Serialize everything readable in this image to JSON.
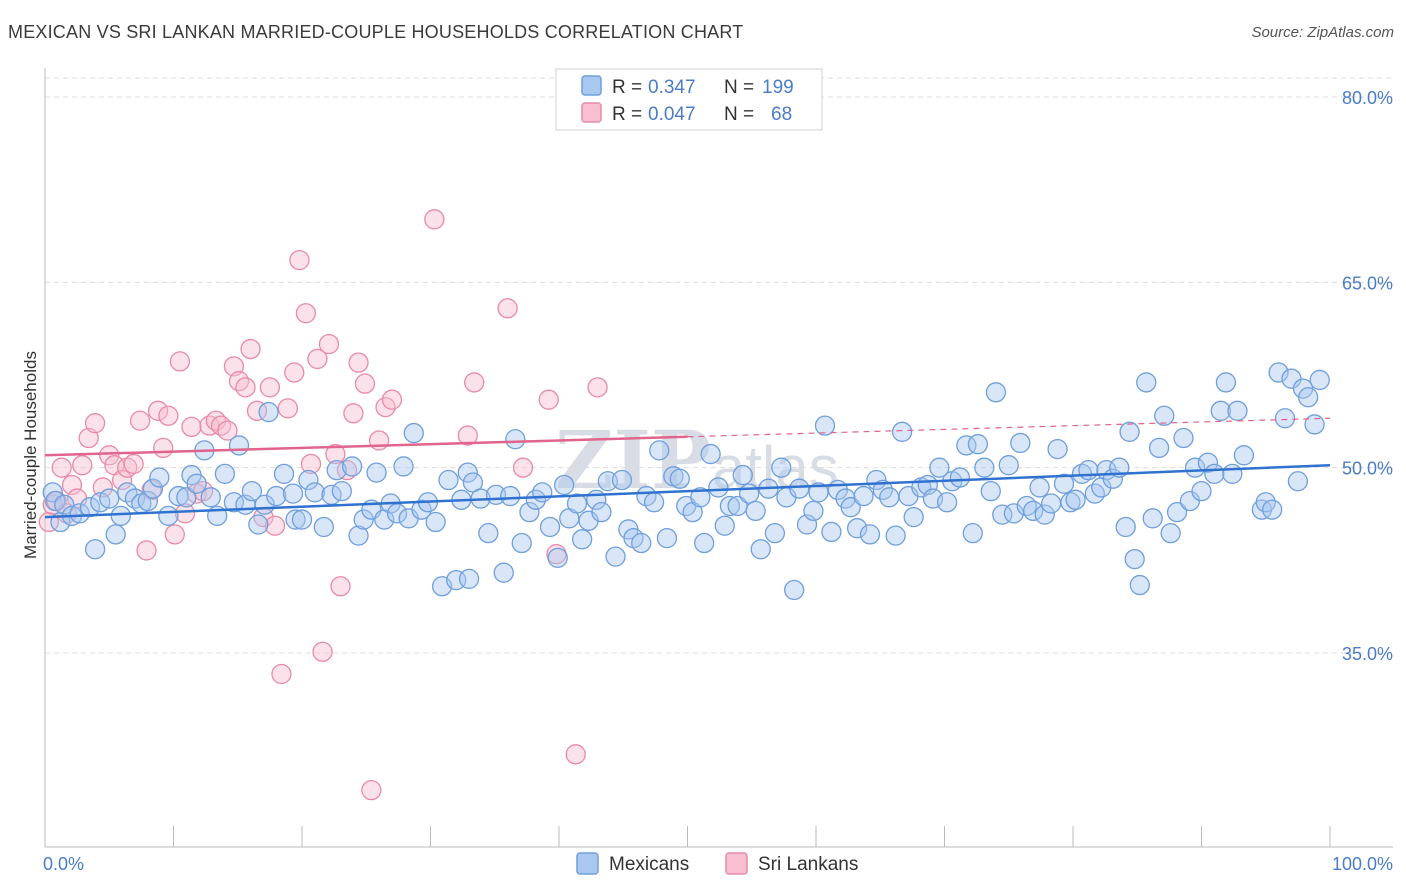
{
  "title": "MEXICAN VS SRI LANKAN MARRIED-COUPLE HOUSEHOLDS CORRELATION CHART",
  "source": "Source: ZipAtlas.com",
  "watermark": {
    "left": "ZIP",
    "right": "atlas"
  },
  "colors": {
    "mexicans_fill": "#a9c8f0",
    "mexicans_stroke": "#6f9fdc",
    "mexicans_line": "#2f72cf",
    "srilankans_fill": "#f7bfd0",
    "srilankans_stroke": "#e98aa8",
    "srilankans_line": "#e0648b",
    "grid": "#dcdcdc",
    "tick_label": "#4a7cc9"
  },
  "legend": {
    "rows": [
      {
        "r_label": "R =",
        "r_value": "0.347",
        "n_label": "N =",
        "n_value": "199"
      },
      {
        "r_label": "R =",
        "r_value": "0.047",
        "n_label": "N =",
        "n_value": "68"
      }
    ]
  },
  "bottom_legend": [
    "Mexicans",
    "Sri Lankans"
  ],
  "chart_data": {
    "type": "scatter",
    "title": "MEXICAN VS SRI LANKAN MARRIED-COUPLE HOUSEHOLDS CORRELATION CHART",
    "xlabel": "",
    "ylabel": "Married-couple Households",
    "xlim": [
      0,
      100
    ],
    "ylim": [
      20,
      82
    ],
    "x_ticks": [
      "0.0%",
      "100.0%"
    ],
    "y_ticks": [
      {
        "value": 35,
        "label": "35.0%"
      },
      {
        "value": 50,
        "label": "50.0%"
      },
      {
        "value": 65,
        "label": "65.0%"
      },
      {
        "value": 80,
        "label": "80.0%"
      }
    ],
    "grid": true,
    "legend_position": "top-center",
    "series": [
      {
        "name": "Mexicans",
        "trend": {
          "x": [
            0,
            100
          ],
          "y": [
            46.0,
            50.2
          ]
        },
        "points": [
          [
            0.6,
            48.0
          ],
          [
            0.8,
            47.3
          ],
          [
            1.2,
            45.6
          ],
          [
            1.5,
            47.0
          ],
          [
            2.1,
            46.1
          ],
          [
            2.7,
            46.3
          ],
          [
            3.5,
            46.8
          ],
          [
            3.9,
            43.4
          ],
          [
            4.3,
            47.2
          ],
          [
            5.0,
            47.5
          ],
          [
            5.5,
            44.6
          ],
          [
            5.9,
            46.1
          ],
          [
            6.4,
            48.0
          ],
          [
            7.0,
            47.5
          ],
          [
            7.5,
            47.1
          ],
          [
            8.0,
            47.3
          ],
          [
            8.4,
            48.3
          ],
          [
            8.9,
            49.2
          ],
          [
            9.6,
            46.1
          ],
          [
            10.4,
            47.7
          ],
          [
            11.0,
            47.6
          ],
          [
            11.4,
            49.4
          ],
          [
            11.8,
            48.7
          ],
          [
            12.4,
            51.4
          ],
          [
            12.9,
            47.6
          ],
          [
            13.4,
            46.1
          ],
          [
            14.0,
            49.5
          ],
          [
            14.7,
            47.2
          ],
          [
            15.1,
            51.8
          ],
          [
            15.6,
            47.0
          ],
          [
            16.1,
            48.1
          ],
          [
            16.6,
            45.4
          ],
          [
            17.1,
            47.0
          ],
          [
            17.4,
            54.5
          ],
          [
            18.0,
            47.7
          ],
          [
            18.6,
            49.5
          ],
          [
            19.3,
            47.9
          ],
          [
            19.5,
            45.8
          ],
          [
            20.0,
            45.8
          ],
          [
            20.5,
            49.0
          ],
          [
            21.0,
            48.0
          ],
          [
            21.7,
            45.2
          ],
          [
            22.3,
            47.8
          ],
          [
            22.7,
            49.8
          ],
          [
            23.1,
            48.1
          ],
          [
            23.9,
            50.1
          ],
          [
            24.4,
            44.5
          ],
          [
            24.8,
            45.8
          ],
          [
            25.4,
            46.6
          ],
          [
            25.8,
            49.6
          ],
          [
            26.4,
            45.8
          ],
          [
            26.9,
            47.1
          ],
          [
            27.4,
            46.3
          ],
          [
            27.9,
            50.1
          ],
          [
            28.3,
            45.9
          ],
          [
            28.7,
            52.8
          ],
          [
            29.3,
            46.6
          ],
          [
            29.8,
            47.2
          ],
          [
            30.4,
            45.6
          ],
          [
            30.9,
            40.4
          ],
          [
            31.4,
            49.0
          ],
          [
            32.0,
            40.9
          ],
          [
            32.4,
            47.4
          ],
          [
            32.9,
            49.6
          ],
          [
            33.3,
            48.8
          ],
          [
            33.9,
            47.5
          ],
          [
            34.5,
            44.7
          ],
          [
            35.1,
            47.8
          ],
          [
            35.7,
            41.5
          ],
          [
            36.2,
            47.7
          ],
          [
            36.6,
            52.3
          ],
          [
            37.1,
            43.9
          ],
          [
            37.7,
            46.4
          ],
          [
            38.2,
            47.4
          ],
          [
            38.7,
            48.0
          ],
          [
            39.3,
            45.2
          ],
          [
            39.9,
            42.7
          ],
          [
            40.4,
            48.6
          ],
          [
            40.8,
            45.9
          ],
          [
            41.4,
            47.1
          ],
          [
            41.8,
            44.2
          ],
          [
            42.3,
            45.7
          ],
          [
            42.9,
            47.4
          ],
          [
            43.3,
            46.4
          ],
          [
            43.8,
            48.9
          ],
          [
            44.4,
            42.8
          ],
          [
            44.9,
            49.0
          ],
          [
            45.4,
            45.0
          ],
          [
            45.8,
            44.3
          ],
          [
            46.4,
            43.9
          ],
          [
            46.8,
            47.7
          ],
          [
            47.4,
            47.2
          ],
          [
            47.8,
            51.4
          ],
          [
            48.4,
            44.3
          ],
          [
            48.9,
            49.3
          ],
          [
            49.4,
            49.1
          ],
          [
            49.9,
            46.9
          ],
          [
            50.4,
            46.4
          ],
          [
            51.0,
            47.6
          ],
          [
            51.3,
            43.9
          ],
          [
            51.8,
            51.1
          ],
          [
            52.4,
            48.4
          ],
          [
            52.9,
            45.3
          ],
          [
            53.3,
            46.9
          ],
          [
            53.9,
            46.9
          ],
          [
            54.3,
            49.4
          ],
          [
            54.8,
            47.9
          ],
          [
            55.3,
            46.5
          ],
          [
            55.7,
            43.4
          ],
          [
            56.3,
            48.3
          ],
          [
            56.8,
            44.7
          ],
          [
            57.3,
            50.0
          ],
          [
            57.7,
            47.6
          ],
          [
            58.3,
            40.1
          ],
          [
            58.7,
            48.3
          ],
          [
            59.3,
            45.4
          ],
          [
            59.8,
            46.5
          ],
          [
            60.2,
            48.0
          ],
          [
            60.7,
            53.4
          ],
          [
            61.2,
            44.8
          ],
          [
            61.7,
            48.2
          ],
          [
            62.3,
            47.5
          ],
          [
            62.7,
            46.8
          ],
          [
            63.2,
            45.1
          ],
          [
            63.7,
            47.7
          ],
          [
            64.2,
            44.6
          ],
          [
            64.7,
            49.0
          ],
          [
            65.2,
            48.2
          ],
          [
            65.7,
            47.6
          ],
          [
            66.2,
            44.5
          ],
          [
            66.7,
            52.9
          ],
          [
            67.2,
            47.7
          ],
          [
            67.6,
            46.0
          ],
          [
            68.2,
            48.4
          ],
          [
            68.7,
            48.6
          ],
          [
            69.1,
            47.5
          ],
          [
            69.6,
            50.0
          ],
          [
            70.2,
            47.2
          ],
          [
            70.6,
            48.9
          ],
          [
            71.2,
            49.2
          ],
          [
            71.7,
            51.8
          ],
          [
            72.2,
            44.7
          ],
          [
            72.6,
            51.9
          ],
          [
            73.1,
            50.0
          ],
          [
            73.6,
            48.1
          ],
          [
            74.0,
            56.1
          ],
          [
            74.5,
            46.2
          ],
          [
            75.0,
            50.2
          ],
          [
            75.4,
            46.3
          ],
          [
            75.9,
            52.0
          ],
          [
            76.4,
            46.9
          ],
          [
            76.9,
            46.5
          ],
          [
            77.4,
            48.4
          ],
          [
            77.8,
            46.2
          ],
          [
            78.3,
            47.1
          ],
          [
            78.8,
            51.5
          ],
          [
            79.3,
            48.7
          ],
          [
            79.8,
            47.2
          ],
          [
            80.2,
            47.4
          ],
          [
            80.7,
            49.5
          ],
          [
            81.2,
            49.8
          ],
          [
            81.7,
            47.9
          ],
          [
            82.2,
            48.4
          ],
          [
            82.6,
            49.8
          ],
          [
            83.1,
            49.1
          ],
          [
            83.6,
            50.0
          ],
          [
            84.1,
            45.2
          ],
          [
            84.4,
            52.9
          ],
          [
            84.8,
            42.6
          ],
          [
            85.2,
            40.5
          ],
          [
            85.7,
            56.9
          ],
          [
            86.2,
            45.9
          ],
          [
            86.7,
            51.6
          ],
          [
            87.1,
            54.2
          ],
          [
            87.6,
            44.7
          ],
          [
            88.1,
            46.4
          ],
          [
            88.6,
            52.4
          ],
          [
            89.1,
            47.3
          ],
          [
            89.5,
            50.0
          ],
          [
            90.0,
            48.1
          ],
          [
            90.5,
            50.4
          ],
          [
            91.0,
            49.5
          ],
          [
            91.5,
            54.6
          ],
          [
            91.9,
            56.9
          ],
          [
            92.4,
            49.5
          ],
          [
            92.8,
            54.6
          ],
          [
            93.3,
            51.0
          ],
          [
            94.7,
            46.6
          ],
          [
            95.0,
            47.2
          ],
          [
            95.5,
            46.6
          ],
          [
            96.0,
            57.7
          ],
          [
            96.5,
            54.0
          ],
          [
            97.0,
            57.2
          ],
          [
            97.5,
            48.9
          ],
          [
            97.9,
            56.4
          ],
          [
            98.3,
            55.7
          ],
          [
            98.8,
            53.5
          ],
          [
            99.2,
            57.1
          ],
          [
            33.0,
            41.0
          ]
        ]
      },
      {
        "name": "Sri Lankans",
        "trend": {
          "x": [
            0,
            100
          ],
          "y": [
            51.0,
            54.0
          ]
        },
        "points": [
          [
            0.3,
            45.6
          ],
          [
            0.6,
            47.0
          ],
          [
            0.9,
            47.3
          ],
          [
            1.3,
            50.0
          ],
          [
            1.7,
            46.3
          ],
          [
            2.1,
            48.6
          ],
          [
            2.5,
            47.5
          ],
          [
            2.9,
            50.2
          ],
          [
            3.4,
            52.4
          ],
          [
            3.9,
            53.6
          ],
          [
            4.5,
            48.4
          ],
          [
            5.0,
            51.0
          ],
          [
            5.4,
            50.2
          ],
          [
            6.0,
            49.0
          ],
          [
            6.4,
            50.0
          ],
          [
            6.9,
            50.3
          ],
          [
            7.4,
            53.8
          ],
          [
            7.9,
            43.3
          ],
          [
            8.3,
            48.2
          ],
          [
            8.8,
            54.6
          ],
          [
            9.2,
            51.6
          ],
          [
            9.6,
            54.2
          ],
          [
            10.1,
            44.6
          ],
          [
            10.5,
            58.6
          ],
          [
            10.9,
            46.3
          ],
          [
            11.4,
            53.3
          ],
          [
            11.8,
            47.9
          ],
          [
            12.3,
            48.1
          ],
          [
            12.8,
            53.4
          ],
          [
            13.3,
            53.8
          ],
          [
            13.7,
            53.4
          ],
          [
            14.2,
            53.0
          ],
          [
            14.7,
            58.2
          ],
          [
            15.1,
            57.0
          ],
          [
            15.6,
            56.5
          ],
          [
            16.0,
            59.6
          ],
          [
            16.5,
            54.6
          ],
          [
            17.0,
            46.0
          ],
          [
            17.5,
            56.5
          ],
          [
            17.9,
            45.3
          ],
          [
            18.4,
            33.3
          ],
          [
            18.9,
            54.8
          ],
          [
            19.4,
            57.7
          ],
          [
            19.8,
            66.8
          ],
          [
            20.3,
            62.5
          ],
          [
            20.7,
            50.3
          ],
          [
            21.2,
            58.8
          ],
          [
            21.6,
            35.1
          ],
          [
            22.1,
            60.0
          ],
          [
            22.6,
            51.1
          ],
          [
            23.0,
            40.4
          ],
          [
            23.5,
            49.8
          ],
          [
            24.0,
            54.4
          ],
          [
            24.4,
            58.5
          ],
          [
            24.9,
            56.8
          ],
          [
            25.4,
            23.9
          ],
          [
            26.0,
            52.2
          ],
          [
            26.5,
            54.9
          ],
          [
            27.0,
            55.5
          ],
          [
            30.3,
            70.1
          ],
          [
            32.9,
            52.6
          ],
          [
            33.4,
            56.9
          ],
          [
            36.0,
            62.9
          ],
          [
            37.2,
            50.0
          ],
          [
            39.2,
            55.5
          ],
          [
            39.8,
            43.0
          ],
          [
            41.3,
            26.8
          ],
          [
            43.0,
            56.5
          ]
        ]
      }
    ]
  }
}
